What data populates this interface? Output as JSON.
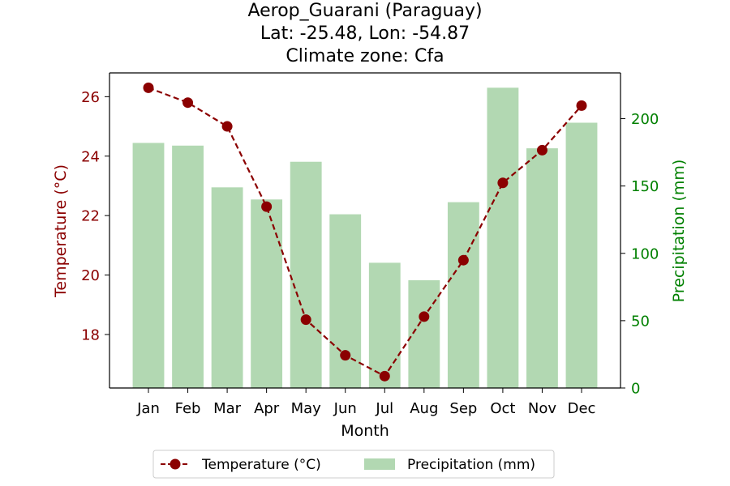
{
  "chart_data": {
    "type": "bar+line",
    "title": [
      "Aerop_Guarani (Paraguay)",
      "Lat: -25.48, Lon: -54.87",
      "Climate zone: Cfa"
    ],
    "xlabel": "Month",
    "categories": [
      "Jan",
      "Feb",
      "Mar",
      "Apr",
      "May",
      "Jun",
      "Jul",
      "Aug",
      "Sep",
      "Oct",
      "Nov",
      "Dec"
    ],
    "temperature": {
      "name": "Temperature (°C)",
      "axis_label": "Temperature (°C)",
      "values": [
        26.3,
        25.8,
        25.0,
        22.3,
        18.5,
        17.3,
        16.6,
        18.6,
        20.5,
        23.1,
        24.2,
        25.7
      ],
      "ylim": [
        16.2,
        26.8
      ],
      "ticks": [
        18,
        20,
        22,
        24,
        26
      ],
      "color": "#8b0000",
      "style": "dashed line with circle markers"
    },
    "precipitation": {
      "name": "Precipitation (mm)",
      "axis_label": "Precipitation (mm)",
      "values": [
        182,
        180,
        149,
        140,
        168,
        129,
        93,
        80,
        138,
        223,
        178,
        197
      ],
      "ylim": [
        0,
        234
      ],
      "ticks": [
        0,
        50,
        100,
        150,
        200
      ],
      "color": "#b2d8b2",
      "axis_color": "#008000"
    },
    "legend": [
      "Temperature (°C)",
      "Precipitation (mm)"
    ],
    "legend_position": "bottom-center",
    "grid": false
  }
}
